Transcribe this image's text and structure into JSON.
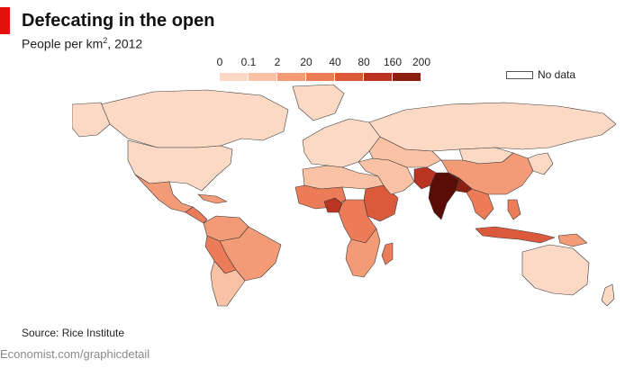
{
  "header": {
    "title": "Defecating in the open",
    "subtitle_prefix": "People per km",
    "subtitle_sup": "2",
    "subtitle_suffix": ", 2012"
  },
  "legend": {
    "ticks": [
      "0",
      "0.1",
      "2",
      "20",
      "40",
      "80",
      "160",
      "200"
    ],
    "colors": [
      "#fcd9c4",
      "#f9c2a5",
      "#f39a76",
      "#ec7b58",
      "#dc5a3c",
      "#bb3422",
      "#8c1e12",
      "#5a0d07"
    ],
    "no_data_label": "No data",
    "no_data_color": "#ffffff"
  },
  "map": {
    "regions": [
      {
        "name": "greenland",
        "bin": 0
      },
      {
        "name": "canada",
        "bin": 0
      },
      {
        "name": "usa",
        "bin": 0
      },
      {
        "name": "alaska",
        "bin": 0
      },
      {
        "name": "mexico",
        "bin": 2
      },
      {
        "name": "central-america",
        "bin": 3
      },
      {
        "name": "caribbean",
        "bin": 2
      },
      {
        "name": "colombia-venezuela",
        "bin": 2
      },
      {
        "name": "brazil",
        "bin": 2
      },
      {
        "name": "peru-bolivia",
        "bin": 3
      },
      {
        "name": "argentina-chile",
        "bin": 1
      },
      {
        "name": "europe",
        "bin": 0
      },
      {
        "name": "russia",
        "bin": 0
      },
      {
        "name": "north-africa",
        "bin": 1
      },
      {
        "name": "west-africa",
        "bin": 3
      },
      {
        "name": "nigeria",
        "bin": 5
      },
      {
        "name": "ethiopia-east-africa",
        "bin": 4
      },
      {
        "name": "central-africa",
        "bin": 3
      },
      {
        "name": "southern-africa",
        "bin": 2
      },
      {
        "name": "madagascar",
        "bin": 3
      },
      {
        "name": "middle-east",
        "bin": 1
      },
      {
        "name": "central-asia",
        "bin": 1
      },
      {
        "name": "china",
        "bin": 2
      },
      {
        "name": "mongolia",
        "bin": 0
      },
      {
        "name": "pakistan",
        "bin": 5
      },
      {
        "name": "india",
        "bin": 7
      },
      {
        "name": "nepal-bangladesh",
        "bin": 6
      },
      {
        "name": "southeast-asia",
        "bin": 3
      },
      {
        "name": "indonesia",
        "bin": 4
      },
      {
        "name": "philippines",
        "bin": 3
      },
      {
        "name": "japan-korea",
        "bin": 0
      },
      {
        "name": "australia",
        "bin": 0
      },
      {
        "name": "new-zealand",
        "bin": 0
      },
      {
        "name": "papua-new-guinea",
        "bin": 2
      }
    ]
  },
  "source": "Source: Rice Institute",
  "footer": "Economist.com/graphicdetail"
}
